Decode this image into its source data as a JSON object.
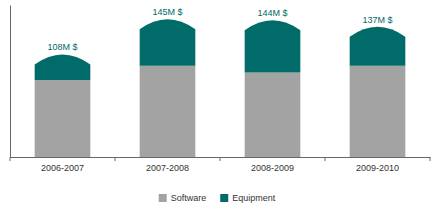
{
  "chart_data": {
    "type": "bar",
    "stacked": true,
    "categories": [
      "2006-2007",
      "2007-2008",
      "2008-2009",
      "2009-2010"
    ],
    "series": [
      {
        "name": "Software",
        "color": "#a3a3a3",
        "values": [
          81,
          96,
          89,
          96
        ]
      },
      {
        "name": "Equipment",
        "color": "#006b68",
        "values": [
          27,
          49,
          55,
          41
        ]
      }
    ],
    "totals": [
      108,
      145,
      144,
      137
    ],
    "total_labels": [
      "108M $",
      "145M $",
      "144M $",
      "137M $"
    ],
    "ylim": [
      0,
      160
    ],
    "yticks": [],
    "tick_labels": "x",
    "grid": false,
    "legend": "bottom"
  }
}
